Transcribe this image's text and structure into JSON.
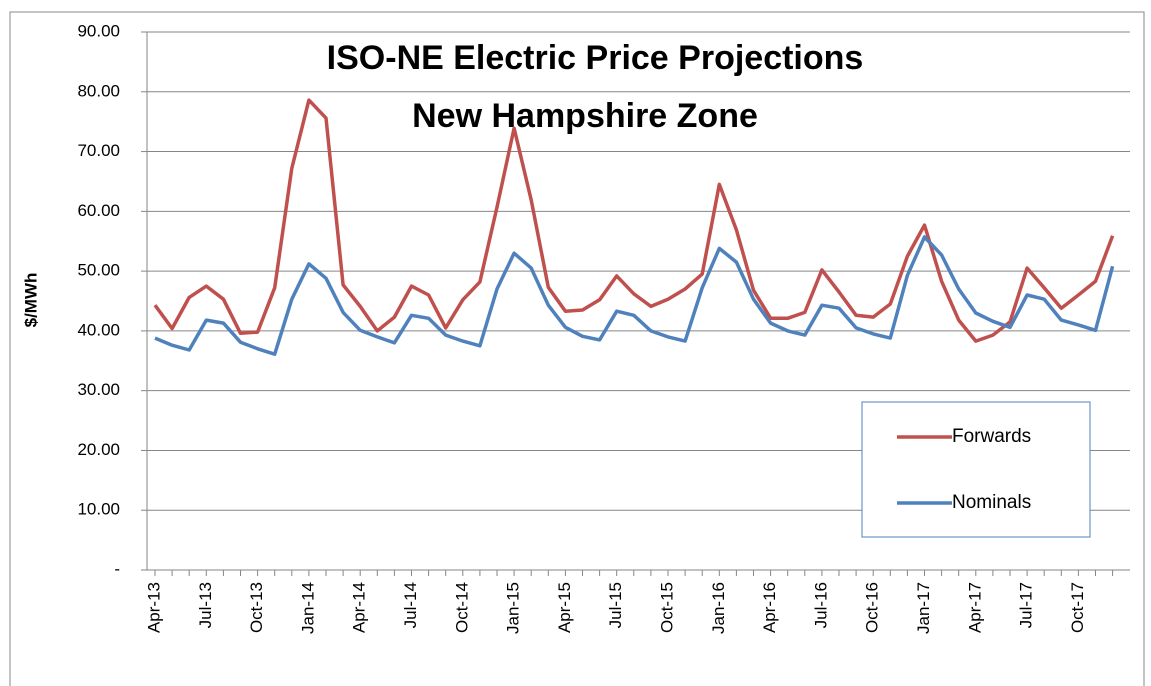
{
  "chart_data": {
    "type": "line",
    "title": [
      "ISO-NE Electric Price Projections",
      "New Hampshire Zone"
    ],
    "y_label": "$/MWh",
    "categories": [
      "Apr-13",
      null,
      null,
      "Jul-13",
      null,
      null,
      "Oct-13",
      null,
      null,
      "Jan-14",
      null,
      null,
      "Apr-14",
      null,
      null,
      "Jul-14",
      null,
      null,
      "Oct-14",
      null,
      null,
      "Jan-15",
      null,
      null,
      "Apr-15",
      null,
      null,
      "Jul-15",
      null,
      null,
      "Oct-15",
      null,
      null,
      "Jan-16",
      null,
      null,
      "Apr-16",
      null,
      null,
      "Jul-16",
      null,
      null,
      "Oct-16",
      null,
      null,
      "Jan-17",
      null,
      null,
      "Apr-17",
      null,
      null,
      "Jul-17",
      null,
      null,
      "Oct-17",
      null,
      null
    ],
    "series": [
      {
        "name": "Forwards",
        "color": "#c0504d",
        "values": [
          44.3,
          40.4,
          45.6,
          47.5,
          45.3,
          39.6,
          39.8,
          47.2,
          67.2,
          78.6,
          75.6,
          47.7,
          44.1,
          40,
          42.3,
          47.5,
          46,
          40.5,
          45.2,
          48.2,
          60.7,
          73.9,
          61.9,
          47.3,
          43.3,
          43.5,
          45.2,
          49.2,
          46.2,
          44.1,
          45.3,
          47,
          49.5,
          64.5,
          56.9,
          46.8,
          42.1,
          42.1,
          43.1,
          50.2,
          46.5,
          42.6,
          42.3,
          44.5,
          52.5,
          57.7,
          48.3,
          41.8,
          38.3,
          39.3,
          41.5,
          50.5,
          47.2,
          43.8,
          46,
          48.3,
          55.9
        ]
      },
      {
        "name": "Nominals",
        "color": "#4f81bd",
        "values": [
          38.8,
          37.6,
          36.8,
          41.8,
          41.3,
          38.1,
          37,
          36.1,
          45.3,
          51.2,
          48.8,
          43.1,
          40.1,
          39,
          38,
          42.6,
          42.1,
          39.3,
          38.3,
          37.5,
          47,
          53,
          50.5,
          44.3,
          40.6,
          39.1,
          38.5,
          43.3,
          42.6,
          40,
          39,
          38.3,
          47.2,
          53.8,
          51.5,
          45.3,
          41.3,
          40,
          39.3,
          44.3,
          43.8,
          40.5,
          39.5,
          38.8,
          49.3,
          55.7,
          52.7,
          47,
          43,
          41.6,
          40.6,
          46,
          45.3,
          41.8,
          41,
          40.1,
          50.8
        ]
      }
    ],
    "ylim": [
      0,
      90
    ],
    "yticks": [
      {
        "value": 0,
        "label": "-"
      },
      {
        "value": 10,
        "label": "10.00"
      },
      {
        "value": 20,
        "label": "20.00"
      },
      {
        "value": 30,
        "label": "30.00"
      },
      {
        "value": 40,
        "label": "40.00"
      },
      {
        "value": 50,
        "label": "50.00"
      },
      {
        "value": 60,
        "label": "60.00"
      },
      {
        "value": 70,
        "label": "70.00"
      },
      {
        "value": 80,
        "label": "80.00"
      },
      {
        "value": 90,
        "label": "90.00"
      }
    ],
    "grid": true,
    "legend": "lower right"
  }
}
